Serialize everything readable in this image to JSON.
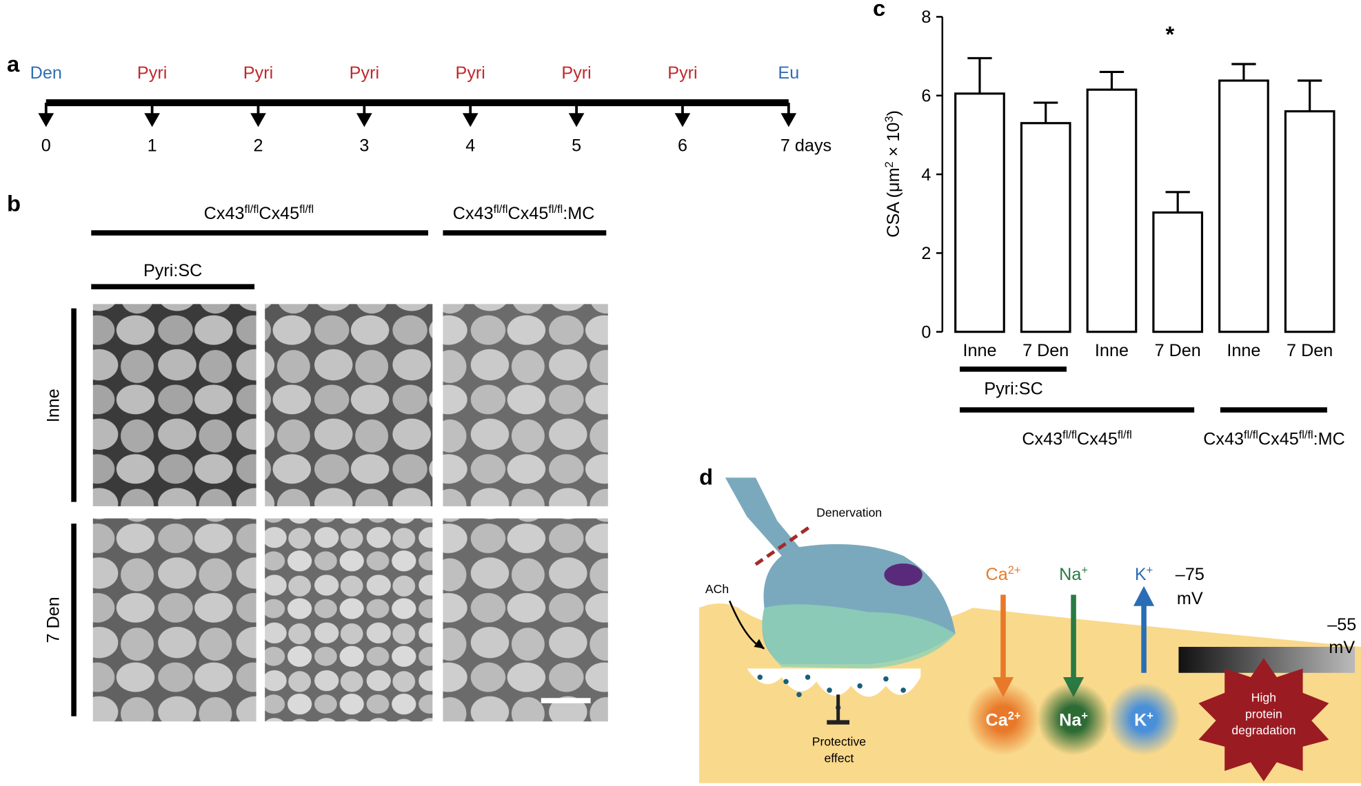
{
  "panel_labels": [
    "a",
    "b",
    "c",
    "d"
  ],
  "timeline": {
    "events": [
      {
        "label": "Den",
        "day": "0",
        "color": "#2f6db5"
      },
      {
        "label": "Pyri",
        "day": "1",
        "color": "#c0282d"
      },
      {
        "label": "Pyri",
        "day": "2",
        "color": "#c0282d"
      },
      {
        "label": "Pyri",
        "day": "3",
        "color": "#c0282d"
      },
      {
        "label": "Pyri",
        "day": "4",
        "color": "#c0282d"
      },
      {
        "label": "Pyri",
        "day": "5",
        "color": "#c0282d"
      },
      {
        "label": "Pyri",
        "day": "6",
        "color": "#c0282d"
      },
      {
        "label": "Eu",
        "day": "7 days",
        "color": "#2f6db5"
      }
    ]
  },
  "micrographs": {
    "group_left": [
      "Cx43",
      "fl/fl",
      "Cx45",
      "fl/fl"
    ],
    "group_right": [
      "Cx43",
      "fl/fl",
      "Cx45",
      "fl/fl",
      ":MC"
    ],
    "subgroup": "Pyri:SC",
    "rows": [
      "Inne",
      "7 Den"
    ]
  },
  "chart_data": {
    "type": "bar",
    "y_label": [
      "CSA (μm",
      "2",
      " × 10",
      "3",
      ")"
    ],
    "categories": [
      "Inne",
      "7 Den",
      "Inne",
      "7 Den",
      "Inne",
      "7 Den"
    ],
    "values": [
      6.05,
      5.3,
      6.15,
      3.03,
      6.38,
      5.6
    ],
    "errors": [
      0.9,
      0.52,
      0.45,
      0.52,
      0.42,
      0.78
    ],
    "color": "#ffffff",
    "ylim": [
      0,
      8
    ],
    "yticks": [
      0,
      2,
      4,
      6,
      8
    ],
    "annotation": "*",
    "group_labels": {
      "subgroup": "Pyri:SC",
      "left": [
        "Cx43",
        "fl/fl",
        "Cx45",
        "fl/fl"
      ],
      "right": [
        "Cx43",
        "fl/fl",
        "Cx45",
        "fl/fl",
        ":MC"
      ]
    }
  },
  "diagram": {
    "denervation": "Denervation",
    "ach": "ACh",
    "protective_effect": [
      "Protective",
      "effect"
    ],
    "ions": [
      {
        "label": [
          "Ca",
          "2+"
        ],
        "color": "#e8792a"
      },
      {
        "label": [
          "Na",
          "+"
        ],
        "color": "#2a7a43"
      },
      {
        "label": [
          "K",
          "+"
        ],
        "color": "#2a6db5"
      }
    ],
    "potential_start": [
      "–75",
      "mV"
    ],
    "potential_end": [
      "–55",
      "mV"
    ],
    "degradation": [
      "High",
      "protein",
      "degradation"
    ]
  }
}
